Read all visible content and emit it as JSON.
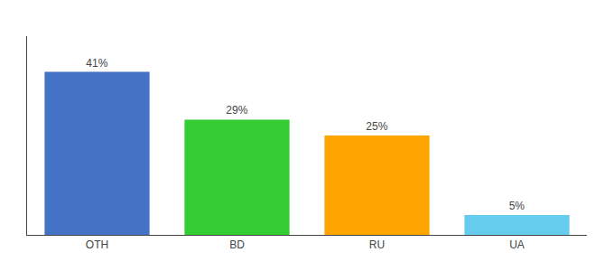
{
  "chart_data": {
    "type": "bar",
    "categories": [
      "OTH",
      "BD",
      "RU",
      "UA"
    ],
    "values": [
      41,
      29,
      25,
      5
    ],
    "value_labels": [
      "41%",
      "29%",
      "25%",
      "5%"
    ],
    "data_labels": true,
    "colors": [
      "#4472C4",
      "#33CC33",
      "#FFA500",
      "#66CCEE"
    ],
    "ylim": [
      0,
      50
    ],
    "grid": false,
    "tick_labels": "x"
  }
}
